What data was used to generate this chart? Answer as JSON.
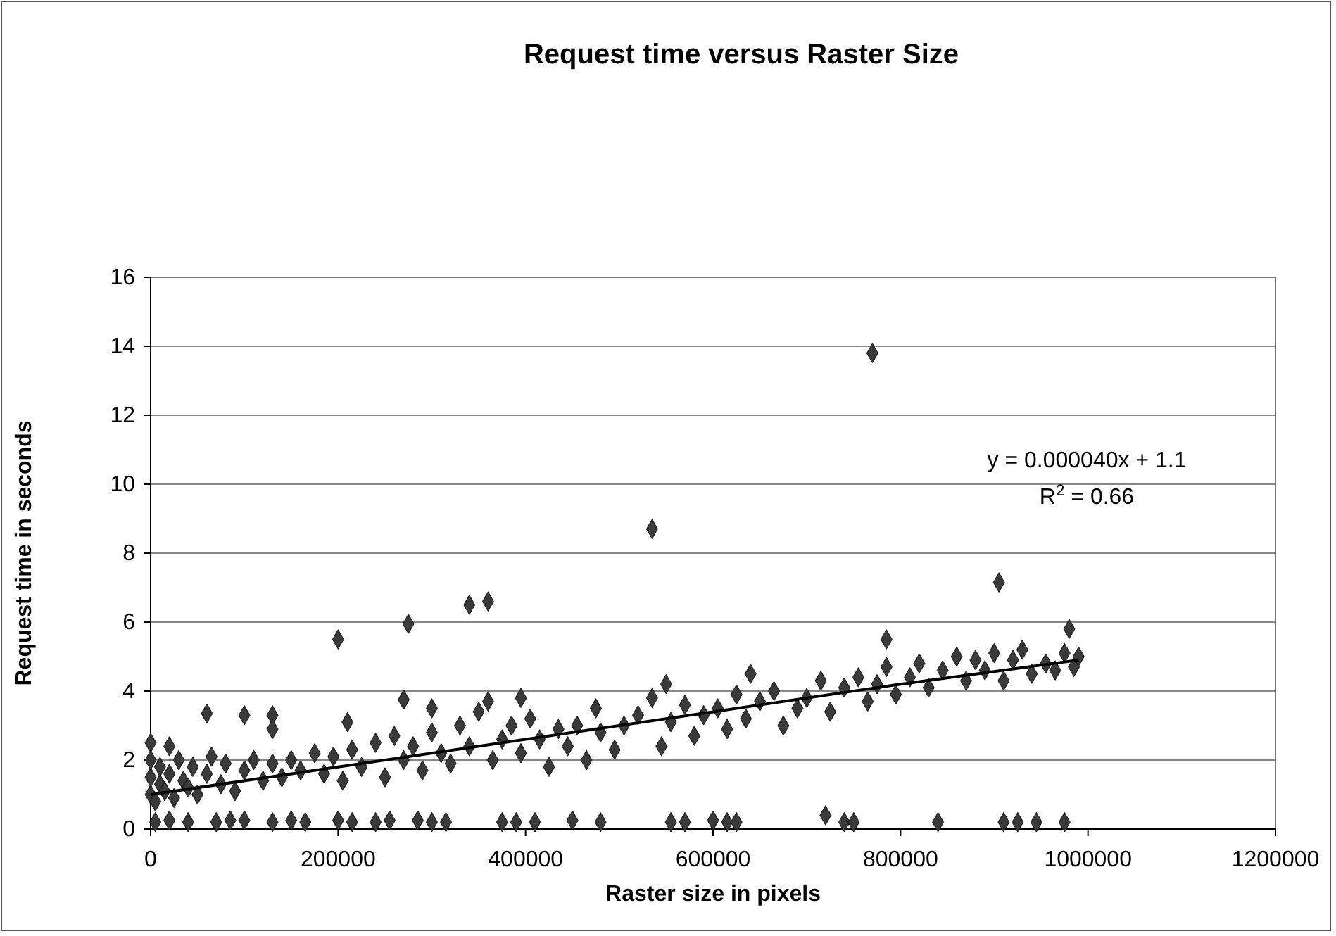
{
  "chart_data": {
    "type": "scatter",
    "title": "Request time versus Raster Size",
    "xlabel": "Raster size in pixels",
    "ylabel": "Request time in seconds",
    "xlim": [
      0,
      1200000
    ],
    "xticks": [
      0,
      200000,
      400000,
      600000,
      800000,
      1000000,
      1200000
    ],
    "ylim": [
      0,
      16
    ],
    "yticks": [
      0,
      2,
      4,
      6,
      8,
      10,
      12,
      14,
      16
    ],
    "grid": "y",
    "annotations": [
      "y = 0.000040x + 1.1",
      "R$^{2}$ = 0.66"
    ],
    "series": [
      {
        "color": "#3a3a3a",
        "marker": "diamond",
        "x": [
          200000,
          275000,
          340000,
          360000,
          535000,
          770000,
          905000,
          60000,
          100000,
          130000,
          130000,
          0,
          20000,
          270000,
          300000,
          210000,
          395000,
          550000,
          640000,
          785000,
          980000,
          5000,
          20000,
          40000,
          70000,
          85000,
          100000,
          130000,
          150000,
          165000,
          200000,
          215000,
          240000,
          255000,
          285000,
          300000,
          315000,
          375000,
          390000,
          410000,
          450000,
          480000,
          555000,
          570000,
          600000,
          615000,
          625000,
          720000,
          740000,
          750000,
          840000,
          910000,
          925000,
          945000,
          975000,
          0,
          0,
          0,
          5000,
          10000,
          10000,
          15000,
          20000,
          25000,
          30000,
          35000,
          40000,
          45000,
          50000,
          60000,
          65000,
          75000,
          80000,
          90000,
          100000,
          110000,
          120000,
          130000,
          140000,
          150000,
          160000,
          175000,
          185000,
          195000,
          205000,
          215000,
          225000,
          240000,
          250000,
          260000,
          270000,
          280000,
          290000,
          300000,
          310000,
          320000,
          330000,
          340000,
          350000,
          360000,
          365000,
          375000,
          385000,
          395000,
          405000,
          415000,
          425000,
          435000,
          445000,
          455000,
          465000,
          475000,
          480000,
          495000,
          505000,
          520000,
          535000,
          545000,
          555000,
          570000,
          580000,
          590000,
          605000,
          615000,
          625000,
          635000,
          650000,
          665000,
          675000,
          690000,
          700000,
          715000,
          725000,
          740000,
          755000,
          765000,
          775000,
          785000,
          795000,
          810000,
          820000,
          830000,
          845000,
          860000,
          870000,
          880000,
          890000,
          900000,
          910000,
          920000,
          930000,
          940000,
          955000,
          965000,
          975000,
          985000,
          990000
        ],
        "values": [
          5.5,
          5.95,
          6.5,
          6.6,
          8.7,
          13.8,
          7.15,
          3.35,
          3.3,
          3.3,
          2.9,
          2.5,
          2.4,
          3.75,
          3.5,
          3.1,
          3.8,
          4.2,
          4.5,
          5.5,
          5.8,
          0.2,
          0.25,
          0.2,
          0.2,
          0.25,
          0.25,
          0.2,
          0.25,
          0.2,
          0.25,
          0.2,
          0.2,
          0.25,
          0.25,
          0.2,
          0.2,
          0.2,
          0.2,
          0.2,
          0.25,
          0.2,
          0.2,
          0.2,
          0.25,
          0.2,
          0.2,
          0.4,
          0.2,
          0.2,
          0.2,
          0.2,
          0.2,
          0.2,
          0.2,
          1.0,
          1.5,
          2.0,
          0.8,
          1.3,
          1.8,
          1.1,
          1.6,
          0.9,
          2.0,
          1.4,
          1.2,
          1.8,
          1.0,
          1.6,
          2.1,
          1.3,
          1.9,
          1.1,
          1.7,
          2.0,
          1.4,
          1.9,
          1.5,
          2.0,
          1.7,
          2.2,
          1.6,
          2.1,
          1.4,
          2.3,
          1.8,
          2.5,
          1.5,
          2.7,
          2.0,
          2.4,
          1.7,
          2.8,
          2.2,
          1.9,
          3.0,
          2.4,
          3.4,
          3.7,
          2.0,
          2.6,
          3.0,
          2.2,
          3.2,
          2.6,
          1.8,
          2.9,
          2.4,
          3.0,
          2.0,
          3.5,
          2.8,
          2.3,
          3.0,
          3.3,
          3.8,
          2.4,
          3.1,
          3.6,
          2.7,
          3.3,
          3.5,
          2.9,
          3.9,
          3.2,
          3.7,
          4.0,
          3.0,
          3.5,
          3.8,
          4.3,
          3.4,
          4.1,
          4.4,
          3.7,
          4.2,
          4.7,
          3.9,
          4.4,
          4.8,
          4.1,
          4.6,
          5.0,
          4.3,
          4.9,
          4.6,
          5.1,
          4.3,
          4.9,
          5.2,
          4.5,
          4.8,
          4.6,
          5.1,
          4.7,
          5.0
        ]
      },
      {
        "type": "line",
        "color": "#000000",
        "marker": "none",
        "x": [
          0,
          200000,
          400000,
          600000,
          800000,
          990000
        ],
        "values": [
          1.0,
          1.8,
          2.6,
          3.4,
          4.2,
          4.9
        ]
      }
    ]
  }
}
